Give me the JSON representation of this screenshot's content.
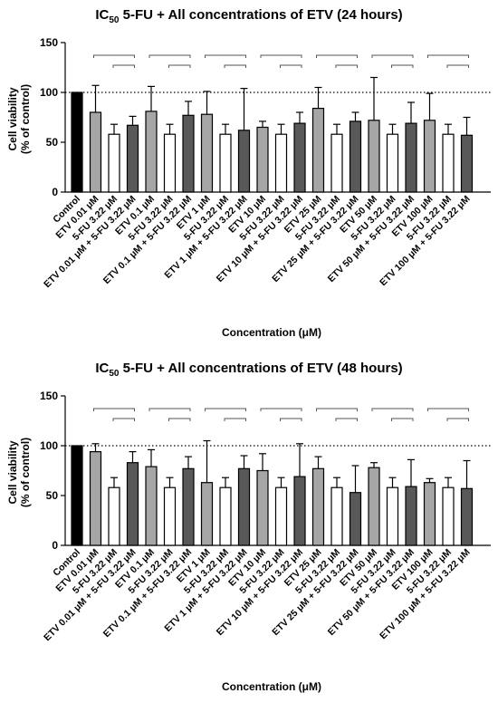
{
  "chart_data": [
    {
      "type": "bar",
      "title_prefix": "IC",
      "title_sub": "50",
      "title_rest": " 5-FU + All concentrations of ETV (24 hours)",
      "ylabel_line1": "Cell viability",
      "ylabel_line2": "(% of control)",
      "xlabel": "Concentration (μM)",
      "ylim": [
        0,
        150
      ],
      "yticks": [
        "0",
        "50",
        "100",
        "150"
      ],
      "reference_line": 100,
      "categories": [
        "Control",
        "ETV 0.01 μM",
        "5-FU 3.22 μM",
        "ETV 0.01 μM + 5-FU 3.22 μM",
        "ETV 0.1 μM",
        "5-FU 3.22 μM",
        "ETV 0.1 μM + 5-FU 3.22 μM",
        "ETV 1 μM",
        "5-FU 3.22 μM",
        "ETV 1 μM + 5-FU 3.22 μM",
        "ETV 10 μM",
        "5-FU 3.22 μM",
        "ETV 10 μM + 5-FU 3.22 μM",
        "ETV 25 μM",
        "5-FU 3.22 μM",
        "ETV 25 μM + 5-FU 3.22 μM",
        "ETV 50 μM",
        "5-FU 3.22 μM",
        "ETV 50 μM + 5-FU 3.22 μM",
        "ETV 100 μM",
        "5-FU 3.22 μM",
        "ETV 100 μM + 5-FU 3.22 μM"
      ],
      "values": [
        100,
        80,
        58,
        67,
        81,
        58,
        77,
        78,
        58,
        62,
        65,
        58,
        69,
        84,
        58,
        71,
        72,
        58,
        69,
        72,
        58,
        57
      ],
      "errors": [
        0,
        27,
        10,
        9,
        25,
        10,
        14,
        23,
        10,
        42,
        6,
        10,
        11,
        21,
        10,
        9,
        43,
        10,
        21,
        27,
        10,
        18
      ],
      "colors": {
        "control": "#000000",
        "etv": "#a6a6a6",
        "fu": "#ffffff",
        "combo": "#595959"
      }
    },
    {
      "type": "bar",
      "title_prefix": "IC",
      "title_sub": "50",
      "title_rest": " 5-FU + All concentrations of ETV (48 hours)",
      "ylabel_line1": "Cell viability",
      "ylabel_line2": "(% of control)",
      "xlabel": "Concentration (μM)",
      "ylim": [
        0,
        150
      ],
      "yticks": [
        "0",
        "50",
        "100",
        "150"
      ],
      "reference_line": 100,
      "categories": [
        "Control",
        "ETV 0.01 μM",
        "5-FU 3.22 μM",
        "ETV 0.01 μM + 5-FU 3.22 μM",
        "ETV 0.1 μM",
        "5-FU 3.22 μM",
        "ETV 0.1 μM + 5-FU 3.22 μM",
        "ETV 1 μM",
        "5-FU 3.22 μM",
        "ETV 1 μM + 5-FU 3.22 μM",
        "ETV 10 μM",
        "5-FU 3.22 μM",
        "ETV 10 μM + 5-FU 3.22 μM",
        "ETV 25 μM",
        "5-FU 3.22 μM",
        "ETV 25 μM + 5-FU 3.22 μM",
        "ETV 50 μM",
        "5-FU 3.22 μM",
        "ETV 50 μM + 5-FU 3.22 μM",
        "ETV 100 μM",
        "5-FU 3.22 μM",
        "ETV 100 μM + 5-FU 3.22 μM"
      ],
      "values": [
        100,
        94,
        58,
        83,
        79,
        58,
        77,
        63,
        58,
        77,
        75,
        58,
        69,
        77,
        58,
        53,
        78,
        58,
        59,
        63,
        58,
        57
      ],
      "errors": [
        0,
        8,
        10,
        11,
        17,
        10,
        12,
        42,
        10,
        13,
        17,
        10,
        33,
        12,
        10,
        27,
        5,
        10,
        27,
        4,
        10,
        28
      ],
      "colors": {
        "control": "#000000",
        "etv": "#a6a6a6",
        "fu": "#ffffff",
        "combo": "#595959"
      }
    }
  ]
}
